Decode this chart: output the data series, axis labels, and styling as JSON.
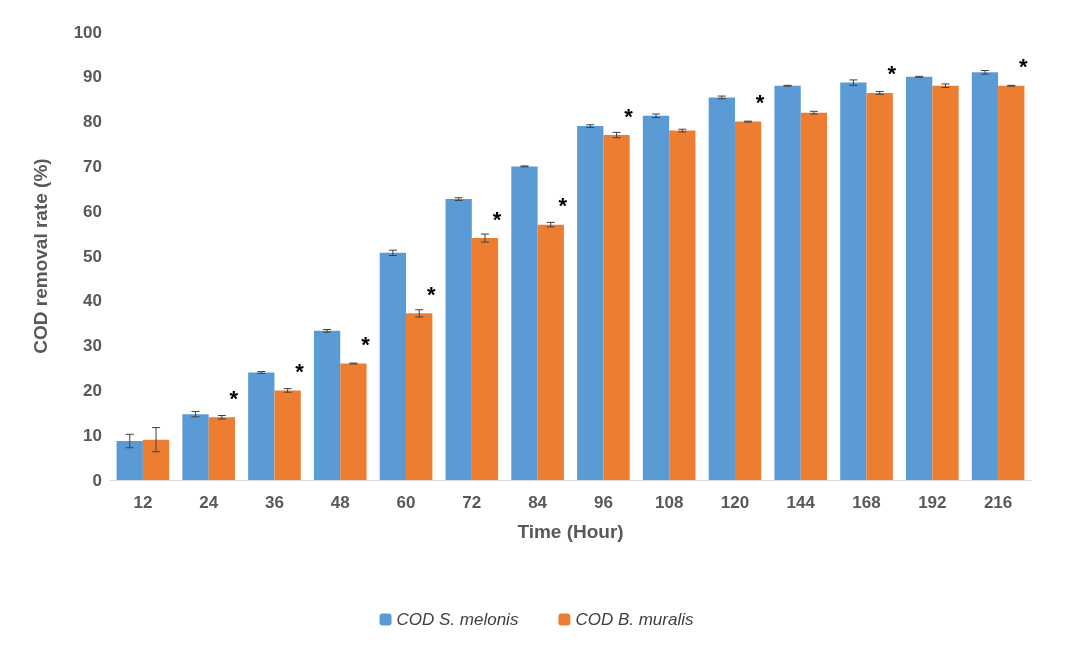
{
  "chart_data": {
    "type": "bar",
    "xlabel": "Time (Hour)",
    "ylabel": "COD removal rate (%)",
    "categories": [
      "12",
      "24",
      "36",
      "48",
      "60",
      "72",
      "84",
      "96",
      "108",
      "120",
      "144",
      "168",
      "192",
      "216"
    ],
    "series": [
      {
        "name": "COD S. melonis",
        "color": "#5b9bd5",
        "values": [
          8.7,
          14.7,
          24,
          33.3,
          50.7,
          62.7,
          70,
          79,
          81.3,
          85.4,
          88,
          88.7,
          90,
          91
        ],
        "errors": [
          1.5,
          0.6,
          0.2,
          0.3,
          0.6,
          0.3,
          0.1,
          0.3,
          0.4,
          0.3,
          0.1,
          0.6,
          0.1,
          0.4
        ]
      },
      {
        "name": "COD B. muralis",
        "color": "#ed7d31",
        "values": [
          9,
          14,
          20,
          26,
          37.2,
          54,
          57,
          77,
          78,
          80,
          82,
          86.4,
          88,
          88
        ],
        "errors": [
          2.7,
          0.4,
          0.4,
          0.1,
          0.8,
          0.9,
          0.5,
          0.6,
          0.3,
          0.1,
          0.3,
          0.3,
          0.4,
          0.1
        ]
      }
    ],
    "annotations": [
      {
        "text": "*",
        "x": "24",
        "y": 14
      },
      {
        "text": "*",
        "x": "36",
        "y": 20
      },
      {
        "text": "*",
        "x": "48",
        "y": 26
      },
      {
        "text": "*",
        "x": "60",
        "y": 37.2
      },
      {
        "text": "*",
        "x": "72",
        "y": 54
      },
      {
        "text": "*",
        "x": "84",
        "y": 57
      },
      {
        "text": "*",
        "x": "96",
        "y": 77
      },
      {
        "text": "*",
        "x": "120",
        "y": 80
      },
      {
        "text": "*",
        "x": "168",
        "y": 86.4
      },
      {
        "text": "*",
        "x": "216",
        "y": 88
      }
    ],
    "ylim": [
      0,
      100
    ],
    "yticks": [
      0,
      10,
      20,
      30,
      40,
      50,
      60,
      70,
      80,
      90,
      100
    ],
    "grid": false,
    "legend": "bottom"
  }
}
